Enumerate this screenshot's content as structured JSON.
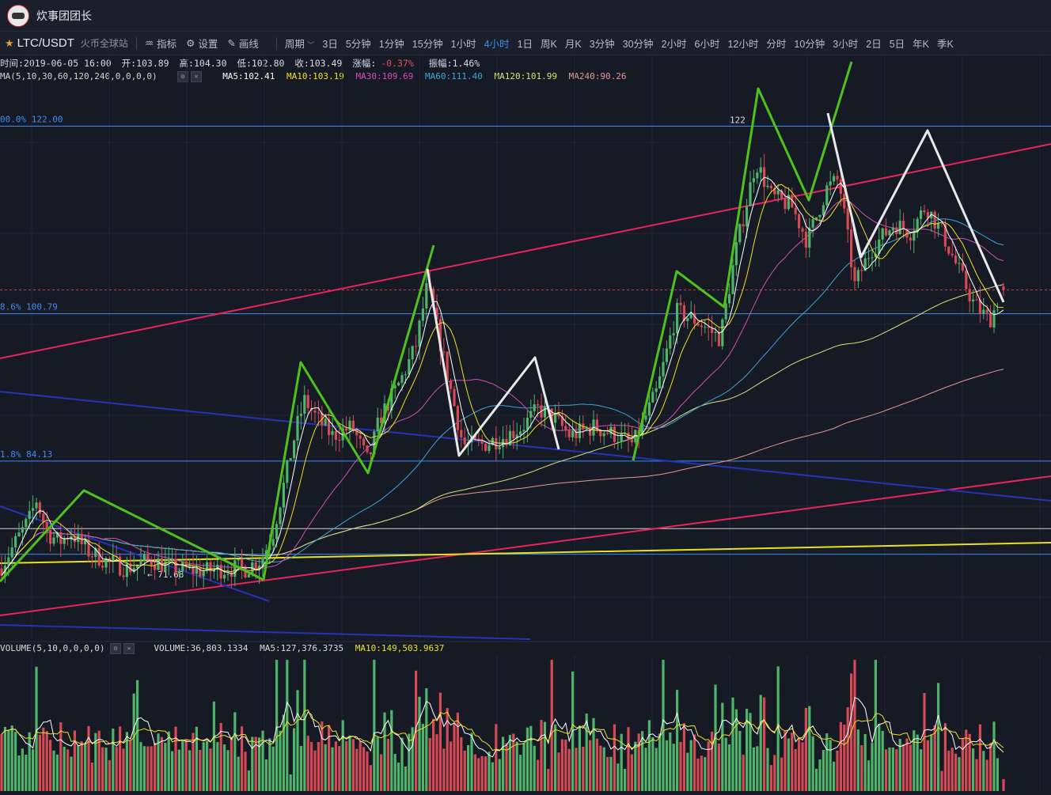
{
  "app": {
    "title": "炊事团团长"
  },
  "toolbar": {
    "pair": "LTC/USDT",
    "exchange": "火币全球站",
    "indicator_label": "指标",
    "settings_label": "设置",
    "draw_label": "画线",
    "period_label": "周期",
    "periods": [
      "3日",
      "5分钟",
      "1分钟",
      "15分钟",
      "1小时",
      "4小时",
      "1日",
      "周K",
      "月K",
      "3分钟",
      "30分钟",
      "2小时",
      "6小时",
      "12小时",
      "分时",
      "10分钟",
      "3小时",
      "2日",
      "5日",
      "年K",
      "季K"
    ],
    "active_period": "4小时"
  },
  "info": {
    "time": "时间:2019-06-05 16:00",
    "open": "开:103.89",
    "high": "高:104.30",
    "low": "低:102.80",
    "close": "收:103.49",
    "change_label": "涨幅:",
    "change_value": "-0.37%",
    "amplitude": "振幅:1.46%"
  },
  "ma_legend": {
    "params": "MA(5,10,30,60,120,240,0,0,0,0)",
    "ma5": "MA5:102.41",
    "ma10": "MA10:103.19",
    "ma30": "MA30:109.69",
    "ma60": "MA60:111.40",
    "ma120": "MA120:101.99",
    "ma240": "MA240:90.26"
  },
  "vol_legend": {
    "params": "VOLUME(5,10,0,0,0,0)",
    "volume": "VOLUME:36,803.1334",
    "ma5": "MA5:127,376.3735",
    "ma10": "MA10:149,503.9637"
  },
  "colors": {
    "up": "#4fb36a",
    "down": "#d64a55",
    "ma5": "#ffffff",
    "ma10": "#f0e020",
    "ma30": "#d34fb5",
    "ma60": "#3aa6d6",
    "ma120": "#d7e37a",
    "ma240": "#e39a90",
    "fib": "#3d8cf0",
    "red_line": "#e8245a",
    "blue_line": "#2432b8",
    "yellow_line": "#e8e020",
    "zigzag_green": "#4ec21c",
    "zigzag_white": "#e8e8e8"
  },
  "fib_labels": {
    "top": "00.0% 122.00",
    "mid": "8.6% 100.79",
    "low": "1.8% 84.13",
    "mark_122": "122",
    "low_mark": "← 71.68"
  },
  "chart_data": {
    "type": "candlestick",
    "symbol": "LTC/USDT",
    "interval": "4小时",
    "last_bar": {
      "time": "2019-06-05 16:00",
      "open": 103.89,
      "high": 104.3,
      "low": 102.8,
      "close": 103.49
    },
    "ylim": [
      64,
      130
    ],
    "price_path": [
      {
        "i": 0,
        "p": 72
      },
      {
        "i": 20,
        "p": 75
      },
      {
        "i": 40,
        "p": 78
      },
      {
        "i": 45,
        "p": 80
      },
      {
        "i": 60,
        "p": 76
      },
      {
        "i": 75,
        "p": 75
      },
      {
        "i": 90,
        "p": 76
      },
      {
        "i": 110,
        "p": 74
      },
      {
        "i": 130,
        "p": 73
      },
      {
        "i": 160,
        "p": 72
      },
      {
        "i": 190,
        "p": 73
      },
      {
        "i": 220,
        "p": 72
      },
      {
        "i": 260,
        "p": 71.7
      },
      {
        "i": 290,
        "p": 72
      },
      {
        "i": 310,
        "p": 72
      },
      {
        "i": 330,
        "p": 73
      },
      {
        "i": 345,
        "p": 76
      },
      {
        "i": 360,
        "p": 82
      },
      {
        "i": 375,
        "p": 88
      },
      {
        "i": 385,
        "p": 91
      },
      {
        "i": 400,
        "p": 89
      },
      {
        "i": 420,
        "p": 87
      },
      {
        "i": 445,
        "p": 88
      },
      {
        "i": 465,
        "p": 84
      },
      {
        "i": 480,
        "p": 89
      },
      {
        "i": 505,
        "p": 93
      },
      {
        "i": 525,
        "p": 97
      },
      {
        "i": 540,
        "p": 104
      },
      {
        "i": 555,
        "p": 98
      },
      {
        "i": 570,
        "p": 92
      },
      {
        "i": 585,
        "p": 86
      },
      {
        "i": 610,
        "p": 86
      },
      {
        "i": 640,
        "p": 87
      },
      {
        "i": 660,
        "p": 88
      },
      {
        "i": 680,
        "p": 90
      },
      {
        "i": 700,
        "p": 89
      },
      {
        "i": 720,
        "p": 87
      },
      {
        "i": 750,
        "p": 88
      },
      {
        "i": 780,
        "p": 87
      },
      {
        "i": 800,
        "p": 86
      },
      {
        "i": 830,
        "p": 92
      },
      {
        "i": 855,
        "p": 101
      },
      {
        "i": 880,
        "p": 100
      },
      {
        "i": 910,
        "p": 98
      },
      {
        "i": 930,
        "p": 108
      },
      {
        "i": 955,
        "p": 118
      },
      {
        "i": 975,
        "p": 114
      },
      {
        "i": 1000,
        "p": 113
      },
      {
        "i": 1020,
        "p": 109
      },
      {
        "i": 1045,
        "p": 115
      },
      {
        "i": 1060,
        "p": 116
      },
      {
        "i": 1080,
        "p": 104
      },
      {
        "i": 1100,
        "p": 108
      },
      {
        "i": 1130,
        "p": 111
      },
      {
        "i": 1150,
        "p": 110
      },
      {
        "i": 1170,
        "p": 113
      },
      {
        "i": 1190,
        "p": 110
      },
      {
        "i": 1215,
        "p": 105
      },
      {
        "i": 1230,
        "p": 102
      },
      {
        "i": 1250,
        "p": 100
      },
      {
        "i": 1268,
        "p": 103.49
      }
    ],
    "volume_ylim": [
      0,
      420000
    ],
    "volume_mas": {
      "ma5": 127376.3735,
      "ma10": 149503.9637,
      "last_volume": 36803.1334
    }
  }
}
